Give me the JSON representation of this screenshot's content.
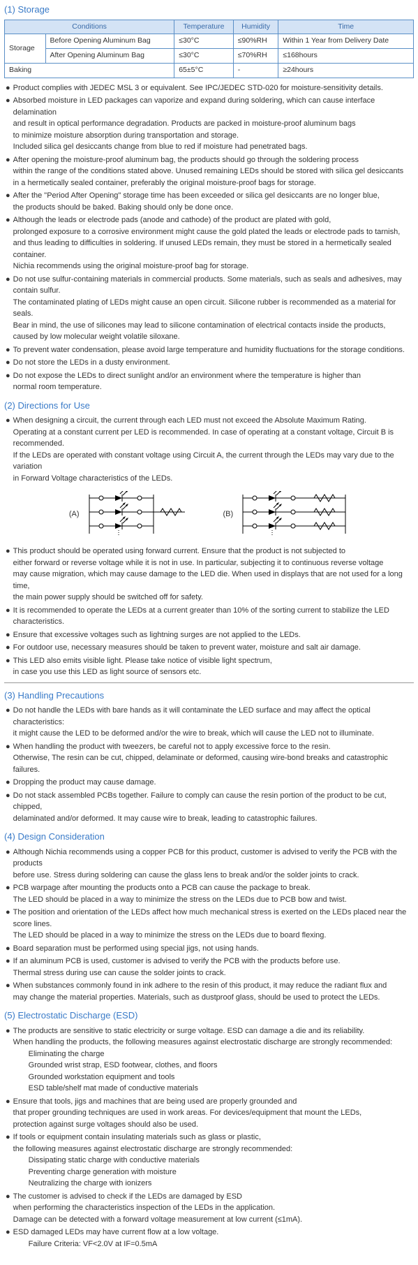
{
  "colors": {
    "heading": "#3a7bc8",
    "table_border": "#5a8fc7",
    "table_header_bg": "#d4e3f5",
    "table_header_fg": "#3a6ba8",
    "text": "#333333"
  },
  "sections": {
    "storage": {
      "title": "(1) Storage",
      "table": {
        "headers": [
          "Conditions",
          "Temperature",
          "Humidity",
          "Time"
        ],
        "rows": [
          [
            "Storage",
            "Before Opening Aluminum Bag",
            "≤30°C",
            "≤90%RH",
            "Within 1 Year from Delivery Date"
          ],
          [
            "",
            "After Opening Aluminum Bag",
            "≤30°C",
            "≤70%RH",
            "≤168hours"
          ],
          [
            "Baking",
            "",
            "65±5°C",
            "-",
            "≥24hours"
          ]
        ]
      },
      "bullets": [
        [
          "Product complies with JEDEC MSL 3 or equivalent. See IPC/JEDEC STD-020 for moisture-sensitivity details."
        ],
        [
          "Absorbed moisture in LED packages can vaporize and expand during soldering, which can cause interface delamination",
          "and result in optical performance degradation. Products are packed in moisture-proof aluminum bags",
          "to minimize moisture absorption during transportation and storage.",
          "Included silica gel desiccants change from blue to red if moisture had penetrated bags."
        ],
        [
          "After opening the moisture-proof aluminum bag, the products should go through the soldering process",
          "within the range of the conditions stated above. Unused remaining LEDs should be stored with silica gel desiccants",
          "in a hermetically sealed container, preferably the original moisture-proof bags for storage."
        ],
        [
          "After the \"Period After Opening\" storage time has been exceeded or silica gel desiccants are no longer blue,",
          "the products should be baked. Baking should only be done once."
        ],
        [
          "Although the leads or electrode pads (anode and cathode) of the product are plated with gold,",
          "prolonged exposure to a corrosive environment might cause the gold plated the leads or electrode pads to tarnish,",
          "and thus leading to difficulties in soldering. If unused LEDs remain, they must be stored in a hermetically sealed container.",
          "Nichia recommends using the original moisture-proof bag for storage."
        ],
        [
          "Do not use sulfur-containing materials in commercial products. Some materials, such as seals and adhesives, may contain sulfur.",
          "The contaminated plating of LEDs might cause an open circuit. Silicone rubber is recommended as a material for seals.",
          "Bear in mind, the use of silicones may lead to silicone contamination of electrical contacts inside the products,",
          "caused by low molecular weight volatile siloxane."
        ],
        [
          "To prevent water condensation, please avoid large temperature and humidity fluctuations for the storage conditions."
        ],
        [
          "Do not store the LEDs in a dusty environment."
        ],
        [
          "Do not expose the LEDs to direct sunlight and/or an environment where the temperature is higher than",
          "normal room temperature."
        ]
      ]
    },
    "directions": {
      "title": "(2) Directions for Use",
      "bullets_top": [
        [
          "When designing a circuit, the current through each LED must not exceed the Absolute Maximum Rating.",
          "Operating at a constant current per LED is recommended. In case of operating at a constant voltage, Circuit B is recommended.",
          "If the LEDs are operated with constant voltage using Circuit A, the current through the LEDs may vary due to the variation",
          "in Forward Voltage characteristics of the LEDs."
        ]
      ],
      "circuit_labels": {
        "a": "(A)",
        "b": "(B)"
      },
      "bullets_bottom": [
        [
          "This product should be operated using forward current. Ensure that the product is not subjected to",
          "either forward or reverse voltage while it is not in use. In particular, subjecting it to continuous reverse voltage",
          "may cause migration, which may cause damage to the LED die. When used in displays that are not used for a long time,",
          "the main power supply should be switched off for safety."
        ],
        [
          "It is recommended to operate the LEDs at a current greater than 10% of the sorting current to stabilize the LED characteristics."
        ],
        [
          "Ensure that excessive voltages such as lightning surges are not applied to the LEDs."
        ],
        [
          "For outdoor use, necessary measures should be taken to prevent water, moisture and salt air damage."
        ],
        [
          "This LED also emits visible light. Please take notice of visible light spectrum,",
          "in case you use this LED as light source of sensors etc."
        ]
      ]
    },
    "handling": {
      "title": "(3) Handling Precautions",
      "bullets": [
        [
          "Do not handle the LEDs with bare hands as it will contaminate the LED surface and may affect the optical characteristics:",
          "it might cause the LED to be deformed and/or the wire to break, which will cause the LED not to illuminate."
        ],
        [
          "When handling the product with tweezers, be careful not to apply excessive force to the resin.",
          "Otherwise, The resin can be cut, chipped, delaminate or deformed, causing wire-bond breaks and catastrophic failures."
        ],
        [
          "Dropping the product may cause damage."
        ],
        [
          "Do not stack assembled PCBs together. Failure to comply can cause the resin portion of the product to be cut, chipped,",
          "delaminated and/or deformed. It may cause wire to break, leading to catastrophic failures."
        ]
      ]
    },
    "design": {
      "title": "(4) Design Consideration",
      "bullets": [
        [
          "Although Nichia recommends using a copper PCB for this product, customer is advised to verify the PCB with the products",
          "before use. Stress during soldering can cause the glass lens to break and/or the solder joints to crack."
        ],
        [
          "PCB warpage after mounting the products onto a PCB can cause the package to break.",
          "The LED should be placed in a way to minimize the stress on the LEDs due to PCB bow and twist."
        ],
        [
          "The position and orientation of the LEDs affect how much mechanical stress is exerted on the LEDs placed near the score lines.",
          "The LED should be placed in a way to minimize the stress on the LEDs due to board flexing."
        ],
        [
          "Board separation must be performed using special jigs, not using hands."
        ],
        [
          "If an aluminum PCB is used, customer is advised to verify the PCB with the products before use.",
          "Thermal stress during use can cause the solder joints to crack."
        ],
        [
          "When substances commonly found in ink adhere to the resin of this product, it may reduce the radiant flux and",
          "may change the material properties. Materials, such as dustproof glass, should be used to protect the LEDs."
        ]
      ]
    },
    "esd": {
      "title": "(5) Electrostatic Discharge (ESD)",
      "bullets": [
        {
          "lines": [
            "The products are sensitive to static electricity or surge voltage. ESD can damage a die and its reliability.",
            "When handling the products, the following measures against electrostatic discharge are strongly recommended:"
          ],
          "sub": [
            "Eliminating the charge",
            "Grounded wrist strap, ESD footwear, clothes, and floors",
            "Grounded workstation equipment and tools",
            "ESD table/shelf mat made of conductive materials"
          ]
        },
        {
          "lines": [
            "Ensure that tools, jigs and machines that are being used are properly grounded and",
            "that proper grounding techniques are used in work areas. For devices/equipment that mount the LEDs,",
            "protection against surge voltages should also be used."
          ]
        },
        {
          "lines": [
            "If tools or equipment contain insulating materials such as glass or plastic,",
            "the following measures against electrostatic discharge are strongly recommended:"
          ],
          "sub": [
            "Dissipating static charge with conductive materials",
            "Preventing charge generation with moisture",
            "Neutralizing the charge with ionizers"
          ]
        },
        {
          "lines": [
            "The customer is advised to check if the LEDs are damaged by ESD",
            "when performing the characteristics inspection of the LEDs in the application.",
            "Damage can be detected with a forward voltage measurement at low current (≤1mA)."
          ]
        },
        {
          "lines": [
            "ESD damaged LEDs may have current flow at a low voltage."
          ],
          "sub": [
            "Failure Criteria: VF<2.0V at IF=0.5mA"
          ]
        }
      ]
    }
  }
}
